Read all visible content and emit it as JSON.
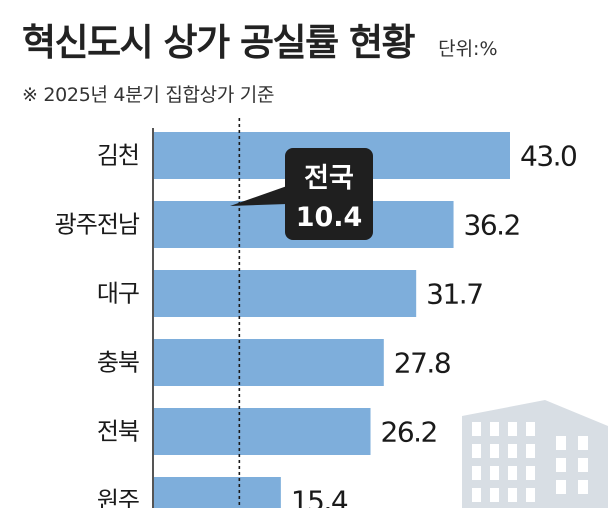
{
  "header": {
    "title": "혁신도시 상가 공실률 현황",
    "unit": "단위:%",
    "note": "※ 2025년 4분기 집합상가 기준"
  },
  "colors": {
    "bar": "#7eaedb",
    "axis": "#555555",
    "callout_bg": "#1f1f1f",
    "watermark": "#d8dee4"
  },
  "icons": [
    "building-icon"
  ],
  "chart_data": {
    "type": "bar",
    "orientation": "horizontal",
    "categories": [
      "김천",
      "광주전남",
      "대구",
      "충북",
      "전북",
      "원주"
    ],
    "values": [
      43.0,
      36.2,
      31.7,
      27.8,
      26.2,
      15.4
    ],
    "value_labels": [
      "43.0",
      "36.2",
      "31.7",
      "27.8",
      "26.2",
      "15.4"
    ],
    "reference_line": {
      "label_line1": "전국",
      "label_line2": "10.4",
      "value": 10.4
    },
    "xlim": [
      0,
      43.0
    ],
    "grid": false,
    "legend": "none"
  }
}
